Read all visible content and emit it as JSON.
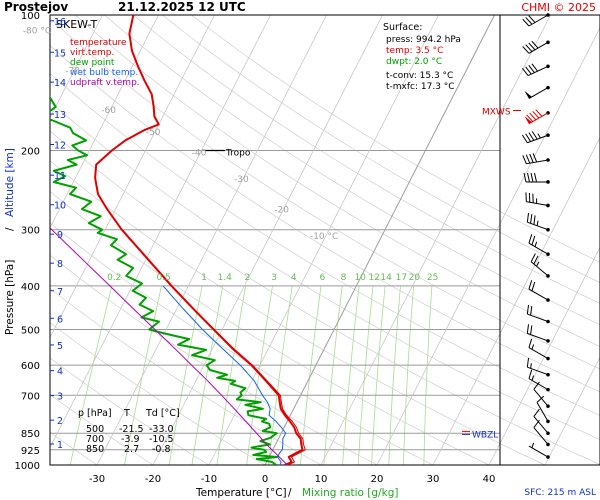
{
  "header": {
    "station": "Prostejov",
    "datetime": "21.12.2025 12 UTC",
    "copyright": "CHMI © 2025"
  },
  "chart_data": {
    "type": "line",
    "title": "SKEW-T",
    "xlabel": "Temperature [°C]",
    "xlabel_sep": "/",
    "xlabel2": "Mixing ratio [g/kg]",
    "ylabel": "Pressure [hPa]",
    "ylabel_sep": "/",
    "ylabel2": "Altitude [km]",
    "xlim": [
      -38,
      45
    ],
    "ylim": [
      1000,
      100
    ],
    "y_scale": "log",
    "x_ticks": [
      -30,
      -20,
      -10,
      0,
      10,
      20,
      30,
      40
    ],
    "pressure_ticks": [
      100,
      200,
      300,
      400,
      500,
      600,
      700,
      850,
      925,
      1000
    ],
    "altitude_ticks": [
      {
        "km": "1",
        "p": 898
      },
      {
        "km": "2",
        "p": 795
      },
      {
        "km": "3",
        "p": 701
      },
      {
        "km": "4",
        "p": 617
      },
      {
        "km": "5",
        "p": 541
      },
      {
        "km": "6",
        "p": 472
      },
      {
        "km": "7",
        "p": 410
      },
      {
        "km": "8",
        "p": 356
      },
      {
        "km": "9",
        "p": 307
      },
      {
        "km": "10",
        "p": 264
      },
      {
        "km": "11",
        "p": 227
      },
      {
        "km": "12",
        "p": 194
      },
      {
        "km": "13",
        "p": 166
      },
      {
        "km": "14",
        "p": 141
      },
      {
        "km": "15",
        "p": 121
      },
      {
        "km": "16",
        "p": 103
      }
    ],
    "isotherm_labels": [
      {
        "t": -80,
        "label": "-80 °C",
        "p": 110
      },
      {
        "t": -70,
        "label": "-70",
        "p": 135
      },
      {
        "t": -60,
        "label": "-60",
        "p": 165
      },
      {
        "t": -50,
        "label": "-50",
        "p": 185
      },
      {
        "t": -40,
        "label": "-40",
        "p": 205
      },
      {
        "t": -30,
        "label": "-30",
        "p": 235
      },
      {
        "t": -20,
        "label": "-20",
        "p": 275
      },
      {
        "t": -10,
        "label": "-10 °C",
        "p": 315
      }
    ],
    "mixing_ratio_lines": [
      "0.2",
      "0.5",
      "1",
      "1.4",
      "2",
      "3",
      "4",
      "6",
      "8",
      "10",
      "12",
      "14",
      "17",
      "20",
      "25"
    ],
    "legend": [
      {
        "name": "temperature",
        "color": "#e00000"
      },
      {
        "name": "virt.temp.",
        "color": "#e00000"
      },
      {
        "name": "dew point",
        "color": "#00a000"
      },
      {
        "name": "wet bulb temp.",
        "color": "#1060ff"
      },
      {
        "name": "udpraft v.temp.",
        "color": "#b000b0"
      }
    ],
    "series": [
      {
        "name": "temperature",
        "color": "#e00000",
        "points": [
          [
            1000,
            3.5
          ],
          [
            985,
            4.5
          ],
          [
            960,
            3.5
          ],
          [
            940,
            4.5
          ],
          [
            925,
            5.3
          ],
          [
            900,
            4.6
          ],
          [
            875,
            4.0
          ],
          [
            850,
            2.7
          ],
          [
            825,
            1.8
          ],
          [
            800,
            0.5
          ],
          [
            775,
            -1.0
          ],
          [
            750,
            -2.3
          ],
          [
            725,
            -3.1
          ],
          [
            700,
            -3.9
          ],
          [
            650,
            -7.5
          ],
          [
            600,
            -11.5
          ],
          [
            550,
            -16.5
          ],
          [
            500,
            -21.5
          ],
          [
            450,
            -27.0
          ],
          [
            400,
            -33.0
          ],
          [
            350,
            -39.5
          ],
          [
            300,
            -47.0
          ],
          [
            270,
            -51.5
          ],
          [
            250,
            -54.5
          ],
          [
            230,
            -56.5
          ],
          [
            215,
            -57.5
          ],
          [
            200,
            -56.0
          ],
          [
            190,
            -54.5
          ],
          [
            180,
            -52.0
          ],
          [
            175,
            -50.0
          ],
          [
            168,
            -51.5
          ],
          [
            160,
            -52.5
          ],
          [
            150,
            -54.0
          ],
          [
            140,
            -56.5
          ],
          [
            130,
            -59.0
          ],
          [
            120,
            -61.5
          ],
          [
            110,
            -63.5
          ],
          [
            100,
            -64.5
          ]
        ]
      },
      {
        "name": "virt.temp.",
        "color": "#e00000",
        "points": [
          [
            1000,
            4.0
          ],
          [
            985,
            5.0
          ],
          [
            960,
            4.0
          ],
          [
            940,
            5.0
          ],
          [
            925,
            5.8
          ],
          [
            900,
            5.0
          ],
          [
            875,
            4.4
          ],
          [
            850,
            3.1
          ],
          [
            825,
            2.2
          ],
          [
            800,
            0.9
          ],
          [
            775,
            -0.7
          ],
          [
            750,
            -2.0
          ],
          [
            725,
            -2.8
          ],
          [
            700,
            -3.6
          ],
          [
            650,
            -7.3
          ],
          [
            600,
            -11.3
          ],
          [
            550,
            -16.3
          ],
          [
            500,
            -21.4
          ],
          [
            450,
            -26.9
          ],
          [
            400,
            -32.9
          ],
          [
            350,
            -39.4
          ],
          [
            300,
            -46.9
          ]
        ]
      },
      {
        "name": "dew point",
        "color": "#00a000",
        "points": [
          [
            1000,
            2.0
          ],
          [
            985,
            1.0
          ],
          [
            970,
            -2.0
          ],
          [
            960,
            1.5
          ],
          [
            950,
            -3.0
          ],
          [
            935,
            -1.0
          ],
          [
            925,
            -1.5
          ],
          [
            915,
            -4.0
          ],
          [
            900,
            -1.0
          ],
          [
            885,
            -3.0
          ],
          [
            870,
            -1.5
          ],
          [
            850,
            -0.8
          ],
          [
            840,
            -3.5
          ],
          [
            825,
            -2.5
          ],
          [
            810,
            -3.0
          ],
          [
            800,
            -4.5
          ],
          [
            790,
            -4.0
          ],
          [
            775,
            -7.5
          ],
          [
            760,
            -8.0
          ],
          [
            750,
            -5.5
          ],
          [
            735,
            -9.0
          ],
          [
            725,
            -6.5
          ],
          [
            715,
            -11.0
          ],
          [
            700,
            -10.5
          ],
          [
            690,
            -11.0
          ],
          [
            675,
            -10.5
          ],
          [
            660,
            -13.5
          ],
          [
            650,
            -13.0
          ],
          [
            640,
            -16.5
          ],
          [
            630,
            -15.0
          ],
          [
            615,
            -18.5
          ],
          [
            600,
            -19.5
          ],
          [
            585,
            -18.5
          ],
          [
            570,
            -23.0
          ],
          [
            555,
            -21.0
          ],
          [
            540,
            -26.5
          ],
          [
            525,
            -25.0
          ],
          [
            510,
            -30.0
          ],
          [
            500,
            -33.0
          ],
          [
            480,
            -32.0
          ],
          [
            470,
            -35.5
          ],
          [
            455,
            -34.0
          ],
          [
            440,
            -37.0
          ],
          [
            425,
            -36.5
          ],
          [
            410,
            -39.5
          ],
          [
            395,
            -38.5
          ],
          [
            380,
            -42.0
          ],
          [
            365,
            -41.5
          ],
          [
            350,
            -45.0
          ],
          [
            340,
            -44.0
          ],
          [
            325,
            -47.5
          ],
          [
            315,
            -47.0
          ],
          [
            305,
            -51.0
          ],
          [
            300,
            -50.5
          ],
          [
            290,
            -53.5
          ],
          [
            280,
            -52.0
          ],
          [
            270,
            -56.0
          ],
          [
            260,
            -55.0
          ],
          [
            250,
            -59.5
          ],
          [
            242,
            -59.0
          ],
          [
            235,
            -63.5
          ],
          [
            228,
            -62.0
          ],
          [
            222,
            -64.5
          ],
          [
            215,
            -61.0
          ],
          [
            210,
            -63.0
          ],
          [
            205,
            -60.0
          ],
          [
            200,
            -62.0
          ],
          [
            195,
            -63.5
          ],
          [
            190,
            -61.5
          ],
          [
            183,
            -64.5
          ],
          [
            178,
            -65.5
          ],
          [
            172,
            -69.0
          ],
          [
            168,
            -71.5
          ],
          [
            160,
            -70.0
          ],
          [
            152,
            -72.0
          ],
          [
            145,
            -73.5
          ],
          [
            138,
            -74.5
          ],
          [
            130,
            -76.0
          ],
          [
            122,
            -78.0
          ],
          [
            115,
            -79.0
          ],
          [
            108,
            -80.5
          ],
          [
            100,
            -81.5
          ]
        ]
      },
      {
        "name": "wet bulb temp.",
        "color": "#1060ff",
        "points": [
          [
            1000,
            2.7
          ],
          [
            985,
            2.6
          ],
          [
            960,
            1.5
          ],
          [
            940,
            1.5
          ],
          [
            925,
            1.7
          ],
          [
            900,
            1.3
          ],
          [
            875,
            0.8
          ],
          [
            850,
            0.8
          ],
          [
            825,
            -0.5
          ],
          [
            800,
            -2.0
          ],
          [
            775,
            -3.8
          ],
          [
            750,
            -4.2
          ],
          [
            725,
            -5.3
          ],
          [
            700,
            -6.8
          ],
          [
            650,
            -9.6
          ],
          [
            600,
            -13.5
          ],
          [
            550,
            -18.3
          ],
          [
            500,
            -23.5
          ],
          [
            450,
            -28.8
          ],
          [
            400,
            -34.5
          ]
        ]
      },
      {
        "name": "udpraft v.temp.",
        "color": "#b000b0",
        "points": [
          [
            1000,
            4.0
          ],
          [
            900,
            -1.6
          ],
          [
            850,
            -4.4
          ],
          [
            800,
            -7.4
          ],
          [
            750,
            -10.6
          ],
          [
            700,
            -14.1
          ],
          [
            650,
            -17.9
          ],
          [
            600,
            -22.2
          ],
          [
            550,
            -26.8
          ],
          [
            500,
            -32.0
          ],
          [
            450,
            -37.7
          ],
          [
            400,
            -44.0
          ],
          [
            350,
            -51.2
          ],
          [
            300,
            -59.5
          ],
          [
            250,
            -69.0
          ],
          [
            200,
            -80.5
          ],
          [
            150,
            -95.0
          ]
        ]
      }
    ],
    "surface": {
      "heading": "Surface:",
      "press": "press: 994.2 hPa",
      "temp": "temp: 3.5 °C",
      "dwpt": "dwpt: 2.0 °C",
      "tconv": "t-conv: 15.3 °C",
      "tmxfc": "t-mxfc: 17.3 °C"
    },
    "table": {
      "headers": [
        "p [hPa]",
        "T",
        "Td [°C]"
      ],
      "rows": [
        [
          "500",
          "-21.5",
          "-33.0"
        ],
        [
          "700",
          "-3.9",
          "-10.5"
        ],
        [
          "850",
          "2.7",
          "-0.8"
        ]
      ]
    },
    "annotations": {
      "tropo": "Tropo",
      "tropo_p": 200,
      "mxws": "MXWS",
      "mxws_p": 163,
      "wbzl": "WBZL",
      "wbzl_p": 855,
      "sfc": "SFC: 215 m ASL"
    },
    "wind_barbs": [
      {
        "p": 100,
        "dir": 240,
        "spd": 30
      },
      {
        "p": 115,
        "dir": 240,
        "spd": 40
      },
      {
        "p": 130,
        "dir": 245,
        "spd": 40
      },
      {
        "p": 145,
        "dir": 240,
        "spd": 50
      },
      {
        "p": 165,
        "dir": 240,
        "spd": 90
      },
      {
        "p": 185,
        "dir": 250,
        "spd": 45
      },
      {
        "p": 210,
        "dir": 260,
        "spd": 40
      },
      {
        "p": 235,
        "dir": 270,
        "spd": 40
      },
      {
        "p": 265,
        "dir": 280,
        "spd": 35
      },
      {
        "p": 300,
        "dir": 290,
        "spd": 35
      },
      {
        "p": 340,
        "dir": 300,
        "spd": 25
      },
      {
        "p": 380,
        "dir": 310,
        "spd": 25
      },
      {
        "p": 430,
        "dir": 300,
        "spd": 20
      },
      {
        "p": 480,
        "dir": 290,
        "spd": 20
      },
      {
        "p": 530,
        "dir": 290,
        "spd": 20
      },
      {
        "p": 580,
        "dir": 300,
        "spd": 15
      },
      {
        "p": 630,
        "dir": 290,
        "spd": 15
      },
      {
        "p": 680,
        "dir": 300,
        "spd": 15
      },
      {
        "p": 740,
        "dir": 320,
        "spd": 10
      },
      {
        "p": 800,
        "dir": 330,
        "spd": 10
      },
      {
        "p": 850,
        "dir": 320,
        "spd": 10
      },
      {
        "p": 900,
        "dir": 320,
        "spd": 10
      },
      {
        "p": 960,
        "dir": 300,
        "spd": 5
      }
    ]
  }
}
